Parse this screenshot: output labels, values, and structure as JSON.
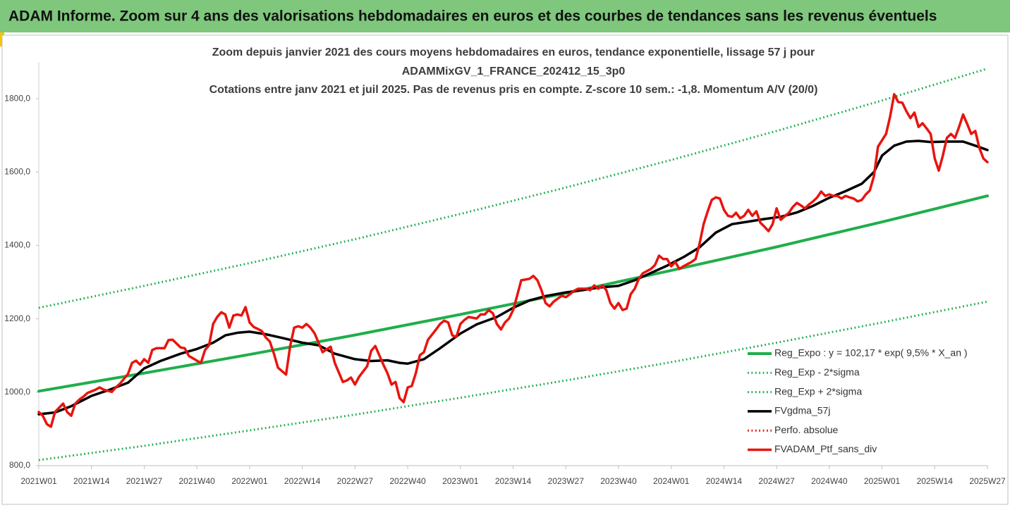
{
  "header": {
    "title": "ADAM Informe. Zoom sur 4 ans des valorisations hebdomadaires en euros et des courbes de tendances sans les revenus éventuels"
  },
  "chart_data": {
    "type": "line",
    "title": [
      "Zoom depuis janvier 2021 des cours moyens hebdomadaires  en euros, tendance exponentielle, lissage 57 j pour",
      "ADAMMixGV_1_FRANCE_202412_15_3p0",
      "Cotations entre janv 2021 et juil 2025. Pas de revenus pris en compte. Z-score 10 sem.: -1,8. Momentum A/V (20/0)"
    ],
    "xlim": [
      0,
      234
    ],
    "xticks": [
      {
        "value": 0,
        "label": "2021W01"
      },
      {
        "value": 13,
        "label": "2021W14"
      },
      {
        "value": 26,
        "label": "2021W27"
      },
      {
        "value": 39,
        "label": "2021W40"
      },
      {
        "value": 52,
        "label": "2022W01"
      },
      {
        "value": 65,
        "label": "2022W14"
      },
      {
        "value": 78,
        "label": "2022W27"
      },
      {
        "value": 91,
        "label": "2022W40"
      },
      {
        "value": 104,
        "label": "2023W01"
      },
      {
        "value": 117,
        "label": "2023W14"
      },
      {
        "value": 130,
        "label": "2023W27"
      },
      {
        "value": 143,
        "label": "2023W40"
      },
      {
        "value": 156,
        "label": "2024W01"
      },
      {
        "value": 169,
        "label": "2024W14"
      },
      {
        "value": 182,
        "label": "2024W27"
      },
      {
        "value": 195,
        "label": "2024W40"
      },
      {
        "value": 208,
        "label": "2025W01"
      },
      {
        "value": 221,
        "label": "2025W14"
      },
      {
        "value": 234,
        "label": "2025W27"
      }
    ],
    "ylim": [
      800,
      1900
    ],
    "yticks": [
      {
        "value": 800,
        "label": "800,0"
      },
      {
        "value": 1000,
        "label": "1000,0"
      },
      {
        "value": 1200,
        "label": "1200,0"
      },
      {
        "value": 1400,
        "label": "1400,0"
      },
      {
        "value": 1600,
        "label": "1600,0"
      },
      {
        "value": 1800,
        "label": "1800,0"
      }
    ],
    "grid": false,
    "legend": "bottom-right",
    "series": [
      {
        "name": "Reg_Expo : y = 102,17 * exp( 9,5% *  X_an )",
        "color": "#1fae4b",
        "style": "solid",
        "width": 4,
        "x": [
          0,
          26,
          52,
          78,
          104,
          130,
          156,
          182,
          208,
          234
        ],
        "values": [
          1003,
          1052,
          1103,
          1156,
          1212,
          1270,
          1332,
          1396,
          1464,
          1535
        ]
      },
      {
        "name": "Reg_Exp - 2*sigma",
        "color": "#1fae4b",
        "style": "dotted",
        "width": 3,
        "x": [
          0,
          26,
          52,
          78,
          104,
          130,
          156,
          182,
          208,
          234
        ],
        "values": [
          815,
          854,
          896,
          939,
          985,
          1032,
          1082,
          1135,
          1190,
          1247
        ]
      },
      {
        "name": "Reg_Exp + 2*sigma",
        "color": "#1fae4b",
        "style": "dotted",
        "width": 3,
        "x": [
          0,
          26,
          52,
          78,
          104,
          130,
          156,
          182,
          208,
          234
        ],
        "values": [
          1230,
          1290,
          1352,
          1417,
          1486,
          1558,
          1633,
          1712,
          1795,
          1882
        ]
      },
      {
        "name": "FVgdma_57j",
        "color": "#000000",
        "style": "solid",
        "width": 3.5,
        "x": [
          0,
          4,
          8,
          13,
          17,
          22,
          26,
          30,
          35,
          39,
          43,
          46,
          49,
          52,
          56,
          60,
          65,
          69,
          73,
          78,
          82,
          86,
          89,
          91,
          95,
          99,
          104,
          108,
          113,
          117,
          121,
          125,
          130,
          134,
          138,
          143,
          147,
          151,
          155,
          159,
          163,
          167,
          171,
          175,
          179,
          183,
          187,
          191,
          195,
          199,
          203,
          206,
          208,
          211,
          214,
          217,
          220,
          224,
          228,
          231,
          234
        ],
        "values": [
          940,
          945,
          962,
          990,
          1005,
          1026,
          1065,
          1085,
          1105,
          1118,
          1135,
          1155,
          1162,
          1165,
          1158,
          1148,
          1135,
          1128,
          1105,
          1090,
          1085,
          1087,
          1080,
          1078,
          1090,
          1120,
          1160,
          1185,
          1205,
          1230,
          1250,
          1262,
          1272,
          1278,
          1285,
          1290,
          1305,
          1325,
          1345,
          1368,
          1395,
          1435,
          1458,
          1465,
          1472,
          1478,
          1490,
          1508,
          1530,
          1548,
          1568,
          1600,
          1645,
          1672,
          1683,
          1685,
          1682,
          1683,
          1683,
          1672,
          1660
        ]
      },
      {
        "name": "Perfo. absolue",
        "color": "#e8140e",
        "style": "dotted",
        "width": 3,
        "x": [],
        "values": []
      },
      {
        "name": "FVADAM_Ptf_sans_div",
        "color": "#e8140e",
        "style": "solid",
        "width": 3.5,
        "x": [
          0,
          1,
          2,
          3,
          4,
          6,
          7,
          8,
          9,
          10,
          11,
          12,
          14,
          15,
          16,
          18,
          19,
          20,
          22,
          23,
          24,
          25,
          26,
          27,
          28,
          29,
          31,
          32,
          33,
          35,
          36,
          37,
          39,
          40,
          41,
          42,
          43,
          44,
          45,
          46,
          47,
          48,
          49,
          50,
          51,
          52,
          53,
          55,
          56,
          57,
          58,
          59,
          61,
          62,
          63,
          64,
          65,
          66,
          67,
          68,
          70,
          71,
          72,
          73,
          75,
          76,
          77,
          78,
          79,
          81,
          82,
          83,
          85,
          86,
          87,
          88,
          89,
          90,
          91,
          92,
          93,
          94,
          95,
          96,
          98,
          99,
          100,
          101,
          102,
          103,
          104,
          105,
          106,
          108,
          109,
          110,
          111,
          112,
          113,
          114,
          115,
          116,
          117,
          118,
          119,
          121,
          122,
          123,
          124,
          125,
          126,
          127,
          129,
          130,
          131,
          132,
          133,
          135,
          136,
          137,
          138,
          139,
          140,
          141,
          142,
          143,
          144,
          145,
          146,
          147,
          148,
          149,
          151,
          152,
          153,
          154,
          155,
          156,
          157,
          158,
          159,
          161,
          162,
          163,
          164,
          165,
          166,
          167,
          168,
          169,
          170,
          171,
          172,
          173,
          174,
          175,
          176,
          177,
          178,
          179,
          180,
          181,
          182,
          183,
          185,
          186,
          187,
          188,
          189,
          190,
          191,
          192,
          193,
          194,
          195,
          196,
          197,
          198,
          199,
          200,
          201,
          202,
          203,
          204,
          205,
          206,
          207,
          209,
          210,
          211,
          212,
          213,
          214,
          215,
          216,
          217,
          218,
          219,
          220,
          221,
          222,
          223,
          224,
          225,
          226,
          227,
          228,
          229,
          230,
          231,
          232,
          233,
          234
        ],
        "values": [
          946,
          936,
          913,
          906,
          946,
          969,
          946,
          936,
          969,
          980,
          988,
          998,
          1007,
          1013,
          1007,
          1001,
          1013,
          1023,
          1050,
          1080,
          1086,
          1075,
          1090,
          1080,
          1115,
          1120,
          1120,
          1142,
          1143,
          1122,
          1120,
          1099,
          1086,
          1080,
          1115,
          1128,
          1186,
          1205,
          1218,
          1212,
          1176,
          1209,
          1212,
          1209,
          1232,
          1190,
          1178,
          1167,
          1149,
          1138,
          1105,
          1067,
          1048,
          1126,
          1176,
          1180,
          1176,
          1186,
          1176,
          1161,
          1109,
          1117,
          1124,
          1080,
          1028,
          1032,
          1040,
          1021,
          1042,
          1071,
          1113,
          1126,
          1075,
          1052,
          1021,
          1028,
          984,
          973,
          1013,
          1017,
          1052,
          1101,
          1109,
          1143,
          1171,
          1186,
          1195,
          1190,
          1155,
          1151,
          1186,
          1197,
          1205,
          1201,
          1212,
          1212,
          1224,
          1215,
          1186,
          1171,
          1190,
          1201,
          1224,
          1263,
          1305,
          1309,
          1317,
          1305,
          1278,
          1243,
          1234,
          1247,
          1263,
          1259,
          1267,
          1276,
          1282,
          1282,
          1278,
          1291,
          1282,
          1291,
          1278,
          1243,
          1228,
          1243,
          1224,
          1228,
          1267,
          1282,
          1309,
          1324,
          1336,
          1347,
          1372,
          1363,
          1363,
          1343,
          1355,
          1336,
          1343,
          1355,
          1363,
          1405,
          1458,
          1493,
          1524,
          1531,
          1528,
          1497,
          1481,
          1478,
          1489,
          1474,
          1481,
          1497,
          1481,
          1493,
          1462,
          1451,
          1439,
          1458,
          1501,
          1470,
          1489,
          1505,
          1516,
          1509,
          1501,
          1512,
          1520,
          1531,
          1547,
          1535,
          1539,
          1535,
          1535,
          1528,
          1535,
          1531,
          1528,
          1520,
          1524,
          1539,
          1550,
          1589,
          1669,
          1704,
          1752,
          1812,
          1791,
          1789,
          1766,
          1747,
          1762,
          1723,
          1733,
          1719,
          1704,
          1637,
          1604,
          1645,
          1693,
          1704,
          1693,
          1723,
          1757,
          1731,
          1704,
          1712,
          1666,
          1637,
          1627
        ]
      }
    ]
  }
}
